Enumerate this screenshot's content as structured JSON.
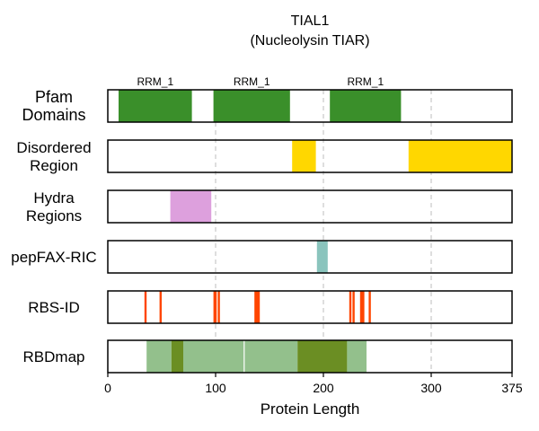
{
  "chart_data": {
    "type": "bar",
    "title": [
      "TIAL1",
      "(Nucleolysin TIAR)"
    ],
    "xlabel": "Protein Length",
    "xlim": [
      0,
      375
    ],
    "xticks": [
      0,
      100,
      200,
      300,
      375
    ],
    "grid": "vertical dashed at 100, 200, 300",
    "tracks": [
      {
        "label": [
          "Pfam",
          "Domains"
        ],
        "color": "#3a8f2a",
        "intervals": [
          {
            "start": 10,
            "end": 78,
            "label": "RRM_1"
          },
          {
            "start": 98,
            "end": 169,
            "label": "RRM_1"
          },
          {
            "start": 206,
            "end": 272,
            "label": "RRM_1"
          }
        ]
      },
      {
        "label": [
          "Disordered",
          "Region"
        ],
        "color": "#ffd700",
        "intervals": [
          {
            "start": 171,
            "end": 193
          },
          {
            "start": 279,
            "end": 375
          }
        ]
      },
      {
        "label": [
          "Hydra",
          "Regions"
        ],
        "color": "#dda0dd",
        "intervals": [
          {
            "start": 58,
            "end": 96
          }
        ]
      },
      {
        "label": [
          "pepFAX-RIC"
        ],
        "color": "#8ac4bd",
        "intervals": [
          {
            "start": 194,
            "end": 204
          }
        ]
      },
      {
        "label": [
          "RBS-ID"
        ],
        "color": "#ff4500",
        "intervals": [
          {
            "start": 34,
            "end": 36
          },
          {
            "start": 48,
            "end": 50
          },
          {
            "start": 98,
            "end": 101
          },
          {
            "start": 102,
            "end": 104
          },
          {
            "start": 136,
            "end": 141
          },
          {
            "start": 224,
            "end": 226
          },
          {
            "start": 227,
            "end": 229
          },
          {
            "start": 234,
            "end": 238
          },
          {
            "start": 242,
            "end": 244
          }
        ]
      },
      {
        "label": [
          "RBDmap"
        ],
        "colors": {
          "light": "#93c08c",
          "dark": "#6b8e23"
        },
        "intervals": [
          {
            "start": 36,
            "end": 59,
            "shade": "light"
          },
          {
            "start": 59,
            "end": 70,
            "shade": "dark"
          },
          {
            "start": 70,
            "end": 126,
            "shade": "light"
          },
          {
            "start": 127,
            "end": 176,
            "shade": "light"
          },
          {
            "start": 176,
            "end": 222,
            "shade": "dark"
          },
          {
            "start": 222,
            "end": 240,
            "shade": "light"
          }
        ]
      }
    ]
  }
}
